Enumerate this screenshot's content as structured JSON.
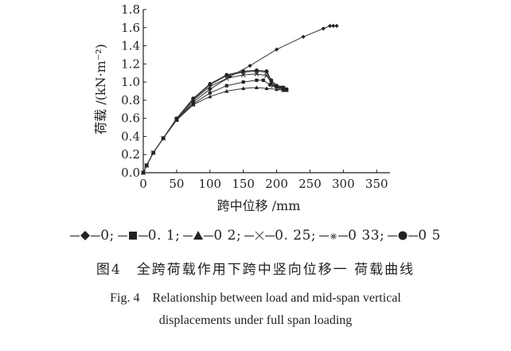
{
  "chart_data": {
    "type": "line",
    "xlabel": "跨中位移 /mm",
    "ylabel": "荷载 /(kN·m⁻²)",
    "xlim": [
      0,
      370
    ],
    "ylim": [
      0,
      1.8
    ],
    "xticks": [
      "0",
      "50",
      "100",
      "150",
      "200",
      "250",
      "300",
      "350"
    ],
    "yticks": [
      "0.0",
      "0.2",
      "0.4",
      "0.6",
      "0.8",
      "1.0",
      "1.2",
      "1.4",
      "1.6",
      "1.8"
    ],
    "grid": false,
    "legend_position": "below",
    "series": [
      {
        "name": "0",
        "marker": "diamond",
        "points": [
          [
            0,
            0
          ],
          [
            5,
            0.08
          ],
          [
            15,
            0.22
          ],
          [
            30,
            0.38
          ],
          [
            50,
            0.58
          ],
          [
            75,
            0.78
          ],
          [
            100,
            0.92
          ],
          [
            130,
            1.06
          ],
          [
            160,
            1.18
          ],
          [
            200,
            1.36
          ],
          [
            240,
            1.5
          ],
          [
            270,
            1.59
          ],
          [
            280,
            1.62
          ],
          [
            285,
            1.62
          ],
          [
            290,
            1.62
          ]
        ]
      },
      {
        "name": "0. 1",
        "marker": "square",
        "points": [
          [
            0,
            0
          ],
          [
            5,
            0.08
          ],
          [
            15,
            0.22
          ],
          [
            30,
            0.38
          ],
          [
            50,
            0.58
          ],
          [
            75,
            0.76
          ],
          [
            100,
            0.88
          ],
          [
            125,
            0.96
          ],
          [
            150,
            1.0
          ],
          [
            170,
            1.02
          ],
          [
            180,
            1.02
          ],
          [
            190,
            0.97
          ],
          [
            200,
            0.95
          ],
          [
            210,
            0.93
          ],
          [
            215,
            0.92
          ]
        ]
      },
      {
        "name": "0 2",
        "marker": "triangle",
        "points": [
          [
            0,
            0
          ],
          [
            5,
            0.08
          ],
          [
            15,
            0.22
          ],
          [
            30,
            0.38
          ],
          [
            50,
            0.58
          ],
          [
            75,
            0.75
          ],
          [
            100,
            0.84
          ],
          [
            125,
            0.9
          ],
          [
            150,
            0.93
          ],
          [
            170,
            0.94
          ],
          [
            185,
            0.93
          ],
          [
            200,
            0.92
          ],
          [
            210,
            0.91
          ],
          [
            215,
            0.91
          ]
        ]
      },
      {
        "name": "0. 25",
        "marker": "x",
        "points": [
          [
            0,
            0
          ],
          [
            5,
            0.08
          ],
          [
            15,
            0.22
          ],
          [
            30,
            0.38
          ],
          [
            50,
            0.59
          ],
          [
            75,
            0.8
          ],
          [
            100,
            0.95
          ],
          [
            125,
            1.04
          ],
          [
            150,
            1.08
          ],
          [
            170,
            1.09
          ],
          [
            185,
            1.07
          ],
          [
            195,
            0.96
          ],
          [
            205,
            0.94
          ],
          [
            210,
            0.93
          ]
        ]
      },
      {
        "name": "0 33",
        "marker": "asterisk",
        "points": [
          [
            0,
            0
          ],
          [
            5,
            0.08
          ],
          [
            15,
            0.22
          ],
          [
            30,
            0.38
          ],
          [
            50,
            0.59
          ],
          [
            75,
            0.81
          ],
          [
            100,
            0.97
          ],
          [
            125,
            1.07
          ],
          [
            150,
            1.11
          ],
          [
            170,
            1.12
          ],
          [
            185,
            1.11
          ],
          [
            192,
            1.0
          ],
          [
            200,
            0.95
          ],
          [
            205,
            0.94
          ]
        ]
      },
      {
        "name": "0 5",
        "marker": "circle",
        "points": [
          [
            0,
            0
          ],
          [
            5,
            0.08
          ],
          [
            15,
            0.22
          ],
          [
            30,
            0.38
          ],
          [
            50,
            0.6
          ],
          [
            75,
            0.82
          ],
          [
            100,
            0.98
          ],
          [
            125,
            1.08
          ],
          [
            150,
            1.12
          ],
          [
            170,
            1.13
          ],
          [
            185,
            1.12
          ],
          [
            192,
            1.02
          ],
          [
            200,
            0.96
          ],
          [
            210,
            0.94
          ],
          [
            215,
            0.92
          ]
        ]
      }
    ]
  },
  "caption": {
    "cn": "图4　全跨荷载作用下跨中竖向位移一 荷载曲线",
    "en_line1": "Fig. 4　Relationship between load and mid-span vertical",
    "en_line2": "displacements under full span loading"
  }
}
